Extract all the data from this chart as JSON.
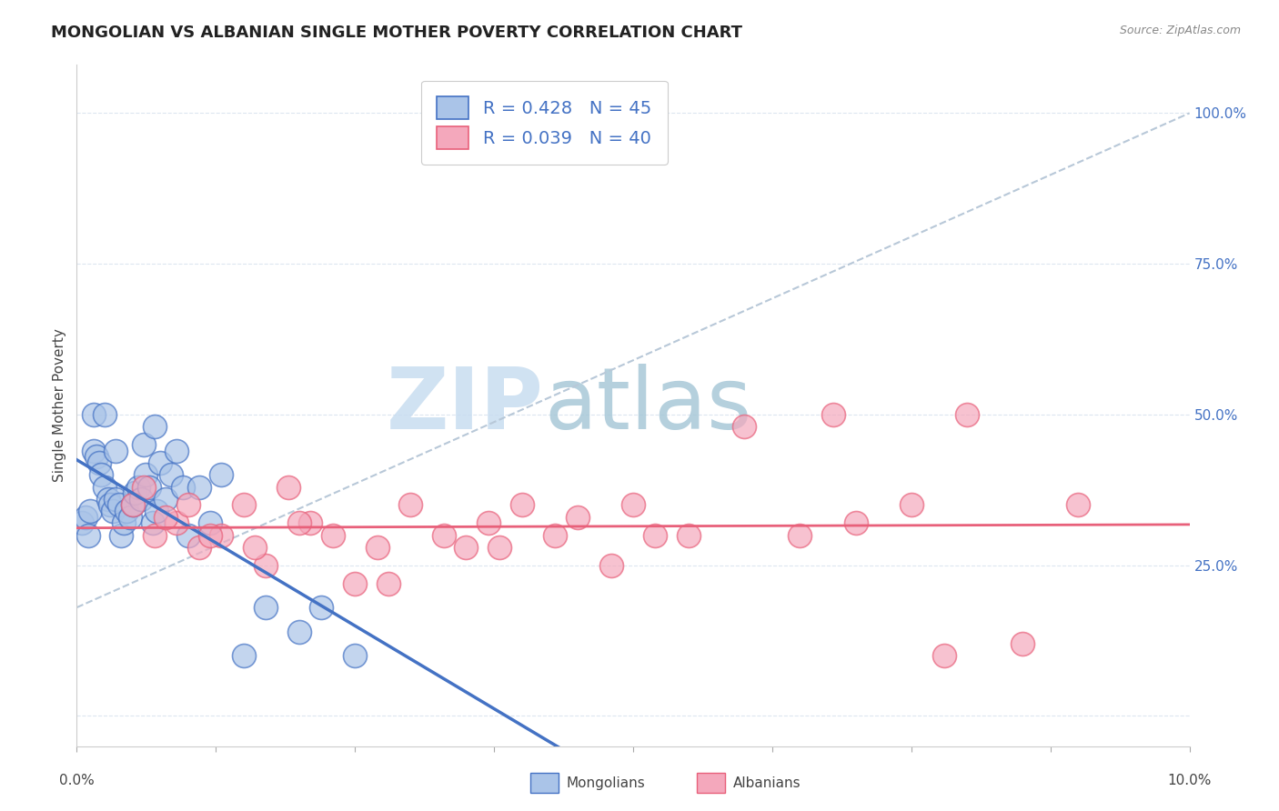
{
  "title": "MONGOLIAN VS ALBANIAN SINGLE MOTHER POVERTY CORRELATION CHART",
  "source_text": "Source: ZipAtlas.com",
  "ylabel": "Single Mother Poverty",
  "xlim": [
    0.0,
    10.0
  ],
  "ylim": [
    -5.0,
    108.0
  ],
  "yticks": [
    0,
    25,
    50,
    75,
    100
  ],
  "ytick_labels": [
    "",
    "25.0%",
    "50.0%",
    "75.0%",
    "100.0%"
  ],
  "mongolian_R": 0.428,
  "mongolian_N": 45,
  "albanian_R": 0.039,
  "albanian_N": 40,
  "mongolian_color": "#aac4e8",
  "albanian_color": "#f4a8bc",
  "mongolian_line_color": "#4472c4",
  "albanian_line_color": "#e8607a",
  "reference_line_color": "#b8c8d8",
  "watermark_zip": "ZIP",
  "watermark_atlas": "atlas",
  "watermark_color_zip": "#c8ddf0",
  "watermark_color_atlas": "#a8c8d8",
  "legend_label_mongolians": "Mongolians",
  "legend_label_albanians": "Albanians",
  "mongolian_scatter_x": [
    0.05,
    0.08,
    0.1,
    0.12,
    0.15,
    0.18,
    0.2,
    0.22,
    0.25,
    0.28,
    0.3,
    0.32,
    0.35,
    0.38,
    0.4,
    0.42,
    0.45,
    0.48,
    0.5,
    0.52,
    0.55,
    0.58,
    0.6,
    0.62,
    0.65,
    0.68,
    0.7,
    0.72,
    0.75,
    0.8,
    0.85,
    0.9,
    0.95,
    1.0,
    1.1,
    1.2,
    1.3,
    1.5,
    1.7,
    2.0,
    2.2,
    2.5,
    0.15,
    0.25,
    0.35
  ],
  "mongolian_scatter_y": [
    32,
    33,
    30,
    34,
    44,
    43,
    42,
    40,
    38,
    36,
    35,
    34,
    36,
    35,
    30,
    32,
    34,
    33,
    35,
    37,
    38,
    36,
    45,
    40,
    38,
    32,
    48,
    34,
    42,
    36,
    40,
    44,
    38,
    30,
    38,
    32,
    40,
    10,
    18,
    14,
    18,
    10,
    50,
    50,
    44
  ],
  "albanian_scatter_x": [
    0.5,
    0.7,
    0.9,
    1.1,
    1.3,
    1.5,
    1.7,
    1.9,
    2.1,
    2.3,
    2.5,
    2.7,
    3.0,
    3.3,
    3.5,
    3.7,
    4.0,
    4.3,
    4.5,
    5.0,
    5.5,
    6.0,
    6.5,
    7.0,
    7.5,
    8.0,
    8.5,
    9.0,
    0.6,
    0.8,
    1.0,
    1.2,
    1.6,
    2.0,
    2.8,
    3.8,
    4.8,
    6.8,
    7.8,
    5.2
  ],
  "albanian_scatter_y": [
    35,
    30,
    32,
    28,
    30,
    35,
    25,
    38,
    32,
    30,
    22,
    28,
    35,
    30,
    28,
    32,
    35,
    30,
    33,
    35,
    30,
    48,
    30,
    32,
    35,
    50,
    12,
    35,
    38,
    33,
    35,
    30,
    28,
    32,
    22,
    28,
    25,
    50,
    10,
    30
  ],
  "background_color": "#ffffff",
  "plot_bg_color": "#ffffff",
  "grid_color": "#dce6f0",
  "title_fontsize": 13,
  "axis_label_fontsize": 11,
  "tick_fontsize": 11,
  "legend_fontsize": 14
}
